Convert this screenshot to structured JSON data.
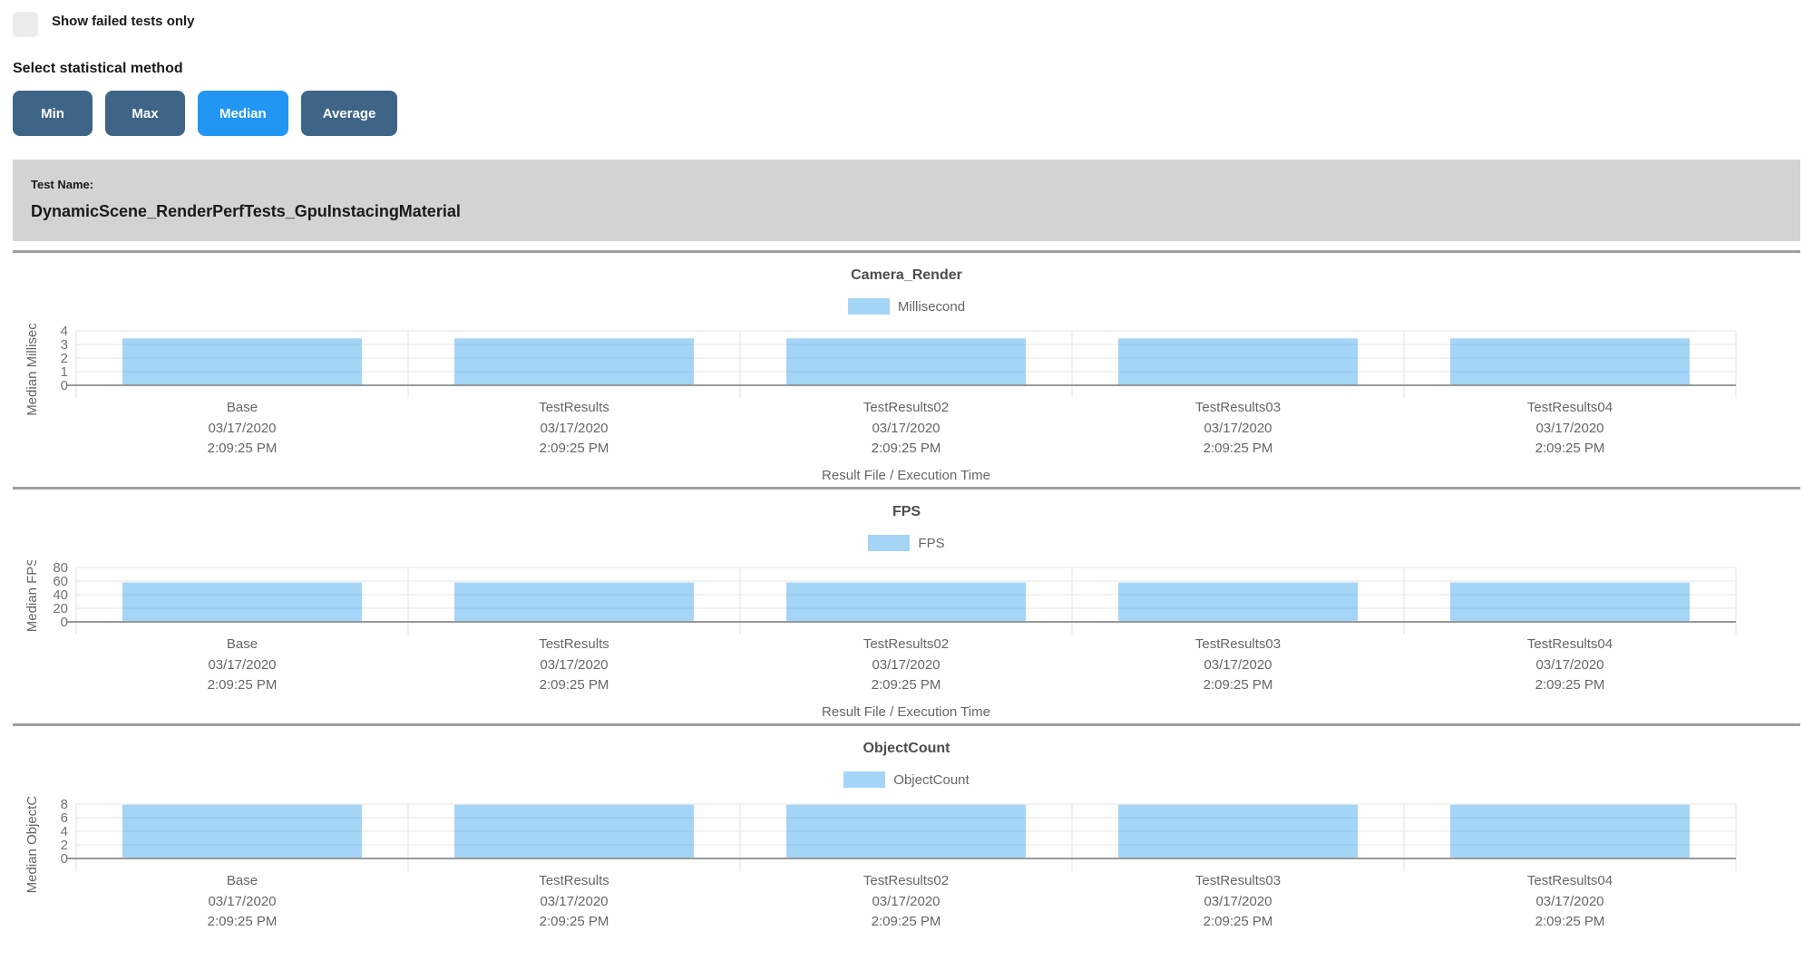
{
  "filters": {
    "show_failed_label": "Show failed tests only",
    "show_failed_checked": false,
    "method_label": "Select statistical method",
    "method_buttons": [
      {
        "label": "Min",
        "active": false
      },
      {
        "label": "Max",
        "active": false
      },
      {
        "label": "Median",
        "active": true
      },
      {
        "label": "Average",
        "active": false
      }
    ]
  },
  "test_banner": {
    "label": "Test Name:",
    "name": "DynamicScene_RenderPerfTests_GpuInstacingMaterial"
  },
  "colors": {
    "button": "#3e6588",
    "button_active": "#2196f3",
    "bar": "rgba(54,162,235,0.45)",
    "banner": "#d3d3d3",
    "grid_light": "#e6e6e6",
    "grid_vertical": "#e0e0e0",
    "axis_zero_line": "#999999",
    "tick_text": "#737373",
    "label_text": "#666666"
  },
  "chart_data": [
    {
      "type": "bar",
      "title": "Camera_Render",
      "legend_label": "Millisecond",
      "ylabel": "Median Millisecond",
      "xlabel": "Result File / Execution Time",
      "ylim": [
        0,
        4
      ],
      "yticks": [
        4,
        3,
        2,
        1,
        0
      ],
      "grid": true,
      "legend_position": "top",
      "categories": [
        {
          "name": "Base",
          "date": "03/17/2020",
          "time": "2:09:25 PM"
        },
        {
          "name": "TestResults",
          "date": "03/17/2020",
          "time": "2:09:25 PM"
        },
        {
          "name": "TestResults02",
          "date": "03/17/2020",
          "time": "2:09:25 PM"
        },
        {
          "name": "TestResults03",
          "date": "03/17/2020",
          "time": "2:09:25 PM"
        },
        {
          "name": "TestResults04",
          "date": "03/17/2020",
          "time": "2:09:25 PM"
        }
      ],
      "values": [
        3.45,
        3.45,
        3.45,
        3.45,
        3.45
      ]
    },
    {
      "type": "bar",
      "title": "FPS",
      "legend_label": "FPS",
      "ylabel": "Median FPS",
      "xlabel": "Result File / Execution Time",
      "ylim": [
        0,
        80
      ],
      "yticks": [
        80,
        60,
        40,
        20,
        0
      ],
      "grid": true,
      "legend_position": "top",
      "categories": [
        {
          "name": "Base",
          "date": "03/17/2020",
          "time": "2:09:25 PM"
        },
        {
          "name": "TestResults",
          "date": "03/17/2020",
          "time": "2:09:25 PM"
        },
        {
          "name": "TestResults02",
          "date": "03/17/2020",
          "time": "2:09:25 PM"
        },
        {
          "name": "TestResults03",
          "date": "03/17/2020",
          "time": "2:09:25 PM"
        },
        {
          "name": "TestResults04",
          "date": "03/17/2020",
          "time": "2:09:25 PM"
        }
      ],
      "values": [
        58,
        58,
        58,
        58,
        58
      ]
    },
    {
      "type": "bar",
      "title": "ObjectCount",
      "legend_label": "ObjectCount",
      "ylabel": "Median ObjectCount",
      "xlabel": "",
      "ylim": [
        0,
        8
      ],
      "yticks": [
        8,
        6,
        4,
        2,
        0
      ],
      "grid": true,
      "legend_position": "top",
      "categories": [
        {
          "name": "Base",
          "date": "03/17/2020",
          "time": "2:09:25 PM"
        },
        {
          "name": "TestResults",
          "date": "03/17/2020",
          "time": "2:09:25 PM"
        },
        {
          "name": "TestResults02",
          "date": "03/17/2020",
          "time": "2:09:25 PM"
        },
        {
          "name": "TestResults03",
          "date": "03/17/2020",
          "time": "2:09:25 PM"
        },
        {
          "name": "TestResults04",
          "date": "03/17/2020",
          "time": "2:09:25 PM"
        }
      ],
      "values": [
        7.9,
        7.9,
        7.9,
        7.9,
        7.9
      ]
    }
  ]
}
